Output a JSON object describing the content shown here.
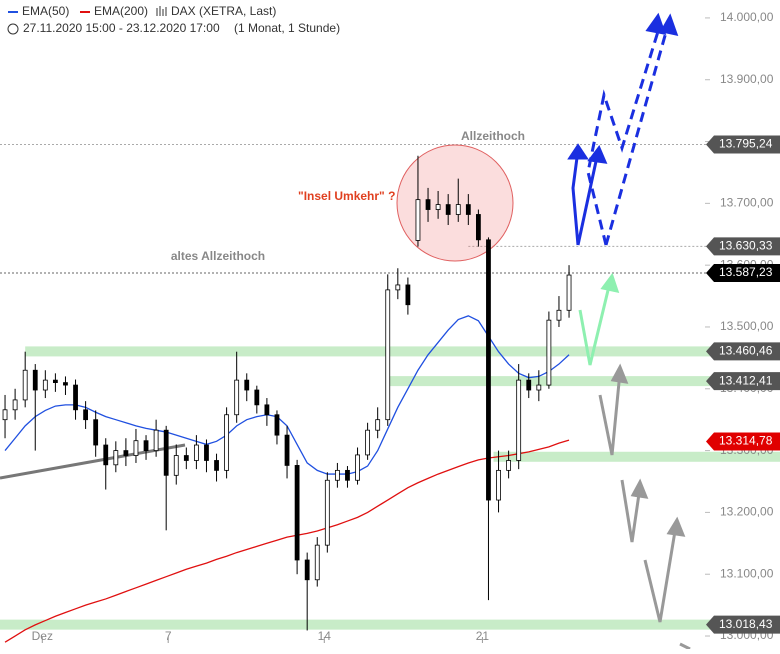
{
  "chart_data": {
    "type": "candlestick",
    "legend": {
      "ema50": "EMA(50)",
      "ema200": "EMA(200)",
      "instrument": "DAX (XETRA, Last)",
      "period": "27.11.2020 15:00 - 23.12.2020 17:00",
      "resolution": "(1 Monat, 1 Stunde)"
    },
    "annotations": {
      "ath": "Allzeithoch",
      "old_ath": "altes Allzeithoch",
      "island": "\"Insel Umkehr\" ?"
    },
    "xlim": [
      -0.5,
      69.5
    ],
    "xticks": [
      {
        "value": 3.7,
        "label": "Dez"
      },
      {
        "value": 16.2,
        "label": "7"
      },
      {
        "value": 31.7,
        "label": "14"
      },
      {
        "value": 47.4,
        "label": "21"
      }
    ],
    "ylim": [
      12979,
      14029
    ],
    "yticks": [
      {
        "value": 13000,
        "label": "13.000,00"
      },
      {
        "value": 13100,
        "label": "13.100,00"
      },
      {
        "value": 13200,
        "label": "13.200,00"
      },
      {
        "value": 13300,
        "label": "13.300,00"
      },
      {
        "value": 13400,
        "label": "13.400,00"
      },
      {
        "value": 13500,
        "label": "13.500,00"
      },
      {
        "value": 13600,
        "label": "13.600,00"
      },
      {
        "value": 13700,
        "label": "13.700,00"
      },
      {
        "value": 13800,
        "label": "13.800,00"
      },
      {
        "value": 13900,
        "label": "13.900,00"
      },
      {
        "value": 14000,
        "label": "14.000,00"
      }
    ],
    "open": [
      13350,
      13366,
      13382,
      13430,
      13398,
      13414,
      13410,
      13406,
      13366,
      13350,
      13309,
      13277,
      13300,
      13292,
      13316,
      13300,
      13333,
      13260,
      13292,
      13284,
      13309,
      13284,
      13268,
      13358,
      13414,
      13398,
      13374,
      13358,
      13325,
      13276,
      13123,
      13091,
      13147,
      13252,
      13268,
      13252,
      13293,
      13333,
      13350,
      13560,
      13568,
      13640,
      13706,
      13690,
      13698,
      13682,
      13698,
      13682,
      13641,
      13220,
      13268,
      13284,
      13414,
      13398,
      13406,
      13511,
      13527
    ],
    "high": [
      13390,
      13400,
      13460,
      13440,
      13430,
      13425,
      13420,
      13415,
      13380,
      13365,
      13320,
      13315,
      13320,
      13335,
      13325,
      13350,
      13340,
      13310,
      13305,
      13325,
      13318,
      13295,
      13370,
      13460,
      13425,
      13405,
      13385,
      13365,
      13340,
      13285,
      13135,
      13160,
      13265,
      13280,
      13275,
      13305,
      13345,
      13370,
      13585,
      13595,
      13580,
      13777,
      13725,
      13720,
      13715,
      13740,
      13715,
      13690,
      13645,
      13300,
      13300,
      13440,
      13425,
      13430,
      13525,
      13550,
      13600
    ],
    "low": [
      13320,
      13350,
      13370,
      13300,
      13385,
      13395,
      13390,
      13350,
      13335,
      13290,
      13237,
      13265,
      13275,
      13280,
      13285,
      13290,
      13171,
      13245,
      13270,
      13270,
      13265,
      13250,
      13255,
      13345,
      13380,
      13360,
      13340,
      13310,
      13255,
      13100,
      13009,
      13080,
      13135,
      13240,
      13240,
      13245,
      13285,
      13320,
      13340,
      13545,
      13520,
      13630,
      13670,
      13675,
      13665,
      13670,
      13665,
      13630,
      13058,
      13200,
      13255,
      13270,
      13385,
      13380,
      13400,
      13500,
      13515
    ],
    "close": [
      13366,
      13382,
      13430,
      13398,
      13414,
      13410,
      13406,
      13366,
      13350,
      13309,
      13277,
      13300,
      13292,
      13316,
      13300,
      13333,
      13260,
      13292,
      13284,
      13309,
      13284,
      13268,
      13358,
      13414,
      13398,
      13374,
      13358,
      13325,
      13276,
      13123,
      13091,
      13147,
      13252,
      13268,
      13252,
      13293,
      13333,
      13350,
      13560,
      13568,
      13536,
      13706,
      13690,
      13698,
      13682,
      13698,
      13682,
      13641,
      13220,
      13268,
      13284,
      13414,
      13398,
      13406,
      13511,
      13527,
      13584
    ],
    "series": [
      {
        "name": "EMA(50)",
        "color": "#2050e0",
        "values": [
          13300,
          13320,
          13340,
          13355,
          13365,
          13372,
          13374,
          13374,
          13370,
          13362,
          13355,
          13350,
          13345,
          13340,
          13336,
          13333,
          13330,
          13325,
          13320,
          13315,
          13310,
          13315,
          13325,
          13340,
          13350,
          13355,
          13358,
          13355,
          13340,
          13310,
          13280,
          13268,
          13262,
          13262,
          13262,
          13266,
          13275,
          13300,
          13335,
          13370,
          13400,
          13430,
          13455,
          13475,
          13495,
          13512,
          13518,
          13510,
          13485,
          13460,
          13440,
          13425,
          13418,
          13420,
          13428,
          13440,
          13455
        ]
      },
      {
        "name": "EMA(200)",
        "color": "#e01010",
        "values": [
          12990,
          13000,
          13010,
          13018,
          13025,
          13032,
          13038,
          13044,
          13050,
          13055,
          13060,
          13066,
          13072,
          13078,
          13084,
          13090,
          13096,
          13102,
          13108,
          13113,
          13118,
          13124,
          13129,
          13135,
          13140,
          13145,
          13150,
          13155,
          13160,
          13163,
          13166,
          13170,
          13175,
          13180,
          13186,
          13192,
          13200,
          13210,
          13220,
          13230,
          13240,
          13248,
          13255,
          13262,
          13268,
          13274,
          13280,
          13285,
          13288,
          13290,
          13292,
          13295,
          13298,
          13302,
          13306,
          13312,
          13317
        ]
      }
    ],
    "levels": [
      {
        "value": 13795.24,
        "label": "13.795,24",
        "tag_color": "#555555",
        "kind": "dotted",
        "from": -0.5
      },
      {
        "value": 13630.33,
        "label": "13.630,33",
        "tag_color": "#555555",
        "kind": "dotted",
        "from": 46
      },
      {
        "value": 13587.23,
        "label": "13.587,23",
        "tag_color": "#000000",
        "kind": "dotted",
        "from": -0.5
      },
      {
        "value": 13460.46,
        "label": "13.460,46",
        "tag_color": "#555555",
        "kind": "zone",
        "from": 2
      },
      {
        "value": 13412.41,
        "label": "13.412,41",
        "tag_color": "#555555",
        "kind": "zone",
        "from": 38
      },
      {
        "value": 13314.78,
        "label": "13.314,78",
        "tag_color": "#e00000",
        "kind": "none",
        "from": 56
      },
      {
        "value": 13290,
        "kind": "zone",
        "from": 48.5
      },
      {
        "value": 13018.43,
        "label": "13.018,43",
        "tag_color": "#555555",
        "kind": "zone",
        "from": -0.5
      }
    ]
  }
}
